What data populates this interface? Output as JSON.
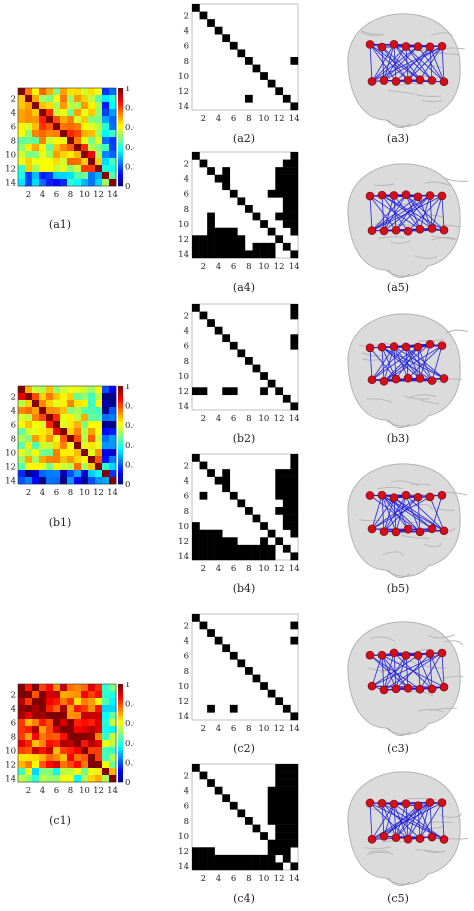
{
  "captions": {
    "a1": "(a1)",
    "a2": "(a2)",
    "a3": "(a3)",
    "a4": "(a4)",
    "a5": "(a5)",
    "b1": "(b1)",
    "b2": "(b2)",
    "b3": "(b3)",
    "b4": "(b4)",
    "b5": "(b5)",
    "c1": "(c1)",
    "c2": "(c2)",
    "c3": "(c3)",
    "c4": "(c4)",
    "c5": "(c5)"
  },
  "axis_ticks": [
    "2",
    "4",
    "6",
    "8",
    "10",
    "12",
    "14"
  ],
  "colorbar_ticks": [
    "1",
    "0.8",
    "0.6",
    "0.4",
    "0.2",
    "0"
  ],
  "colors": {
    "node": "#d0101a",
    "edge": "#1a1ad8",
    "brain": "#d8d8d8",
    "binary_on": "#000000",
    "binary_off": "#ffffff"
  },
  "chart_data": [
    {
      "id": "a1",
      "type": "heatmap",
      "xlabel": "",
      "ylabel": "",
      "ticks": [
        2,
        4,
        6,
        8,
        10,
        12,
        14
      ],
      "colorbar": [
        0,
        1
      ],
      "colormap": "jet",
      "size": 14
    },
    {
      "id": "b1",
      "type": "heatmap",
      "xlabel": "",
      "ylabel": "",
      "ticks": [
        2,
        4,
        6,
        8,
        10,
        12,
        14
      ],
      "colorbar": [
        0,
        1
      ],
      "colormap": "jet",
      "size": 14
    },
    {
      "id": "c1",
      "type": "heatmap",
      "xlabel": "",
      "ylabel": "",
      "ticks": [
        2,
        4,
        6,
        8,
        10,
        12,
        14
      ],
      "colorbar": [
        0,
        1
      ],
      "colormap": "jet",
      "size": 14
    },
    {
      "id": "a2",
      "type": "heatmap",
      "size": 14,
      "binary": true,
      "ones": [
        [
          1,
          1
        ],
        [
          2,
          2
        ],
        [
          3,
          3
        ],
        [
          4,
          4
        ],
        [
          5,
          5
        ],
        [
          6,
          6
        ],
        [
          7,
          7
        ],
        [
          8,
          8
        ],
        [
          9,
          9
        ],
        [
          10,
          10
        ],
        [
          11,
          11
        ],
        [
          12,
          12
        ],
        [
          13,
          13
        ],
        [
          14,
          14
        ],
        [
          8,
          14
        ],
        [
          13,
          8
        ]
      ]
    },
    {
      "id": "a4",
      "type": "heatmap",
      "size": 14,
      "binary": true,
      "ones": [
        [
          1,
          1
        ],
        [
          2,
          2
        ],
        [
          3,
          3
        ],
        [
          4,
          4
        ],
        [
          5,
          5
        ],
        [
          6,
          6
        ],
        [
          7,
          7
        ],
        [
          8,
          8
        ],
        [
          9,
          9
        ],
        [
          10,
          10
        ],
        [
          11,
          11
        ],
        [
          12,
          12
        ],
        [
          13,
          13
        ],
        [
          14,
          14
        ],
        [
          1,
          14
        ],
        [
          2,
          14
        ],
        [
          3,
          14
        ],
        [
          4,
          14
        ],
        [
          5,
          14
        ],
        [
          6,
          14
        ],
        [
          7,
          14
        ],
        [
          8,
          14
        ],
        [
          9,
          14
        ],
        [
          10,
          14
        ],
        [
          11,
          14
        ],
        [
          2,
          13
        ],
        [
          3,
          13
        ],
        [
          4,
          13
        ],
        [
          5,
          13
        ],
        [
          6,
          13
        ],
        [
          7,
          13
        ],
        [
          8,
          13
        ],
        [
          9,
          13
        ],
        [
          10,
          13
        ],
        [
          3,
          12
        ],
        [
          4,
          12
        ],
        [
          5,
          12
        ],
        [
          6,
          12
        ],
        [
          9,
          12
        ],
        [
          3,
          5
        ],
        [
          4,
          5
        ],
        [
          5,
          5
        ],
        [
          6,
          11
        ],
        [
          9,
          3
        ],
        [
          10,
          3
        ],
        [
          11,
          3
        ],
        [
          12,
          3
        ],
        [
          13,
          3
        ],
        [
          14,
          3
        ],
        [
          12,
          1
        ],
        [
          13,
          1
        ],
        [
          14,
          1
        ],
        [
          12,
          2
        ],
        [
          13,
          2
        ],
        [
          14,
          2
        ],
        [
          11,
          4
        ],
        [
          12,
          4
        ],
        [
          13,
          4
        ],
        [
          14,
          4
        ],
        [
          11,
          5
        ],
        [
          12,
          5
        ],
        [
          13,
          5
        ],
        [
          14,
          5
        ],
        [
          11,
          6
        ],
        [
          12,
          6
        ],
        [
          13,
          6
        ],
        [
          14,
          6
        ],
        [
          12,
          7
        ],
        [
          13,
          7
        ],
        [
          14,
          7
        ],
        [
          14,
          8
        ],
        [
          13,
          9
        ],
        [
          14,
          9
        ],
        [
          13,
          10
        ],
        [
          14,
          10
        ],
        [
          13,
          11
        ],
        [
          14,
          11
        ]
      ]
    },
    {
      "id": "b2",
      "type": "heatmap",
      "size": 14,
      "binary": true,
      "ones": [
        [
          1,
          1
        ],
        [
          2,
          2
        ],
        [
          3,
          3
        ],
        [
          4,
          4
        ],
        [
          5,
          5
        ],
        [
          6,
          6
        ],
        [
          7,
          7
        ],
        [
          8,
          8
        ],
        [
          9,
          9
        ],
        [
          10,
          10
        ],
        [
          11,
          11
        ],
        [
          12,
          12
        ],
        [
          13,
          13
        ],
        [
          14,
          14
        ],
        [
          1,
          14
        ],
        [
          2,
          14
        ],
        [
          5,
          14
        ],
        [
          6,
          14
        ],
        [
          12,
          1
        ],
        [
          12,
          2
        ],
        [
          12,
          5
        ],
        [
          12,
          6
        ],
        [
          12,
          10
        ]
      ]
    },
    {
      "id": "b4",
      "type": "heatmap",
      "size": 14,
      "binary": true,
      "ones": [
        [
          1,
          1
        ],
        [
          2,
          2
        ],
        [
          3,
          3
        ],
        [
          4,
          4
        ],
        [
          5,
          5
        ],
        [
          6,
          6
        ],
        [
          7,
          7
        ],
        [
          8,
          8
        ],
        [
          9,
          9
        ],
        [
          10,
          10
        ],
        [
          11,
          11
        ],
        [
          12,
          12
        ],
        [
          13,
          13
        ],
        [
          14,
          14
        ],
        [
          1,
          14
        ],
        [
          2,
          14
        ],
        [
          3,
          14
        ],
        [
          4,
          14
        ],
        [
          5,
          14
        ],
        [
          6,
          14
        ],
        [
          7,
          14
        ],
        [
          8,
          14
        ],
        [
          9,
          14
        ],
        [
          10,
          14
        ],
        [
          11,
          14
        ],
        [
          3,
          13
        ],
        [
          4,
          13
        ],
        [
          5,
          13
        ],
        [
          6,
          13
        ],
        [
          7,
          13
        ],
        [
          8,
          13
        ],
        [
          9,
          13
        ],
        [
          10,
          13
        ],
        [
          3,
          12
        ],
        [
          4,
          12
        ],
        [
          5,
          12
        ],
        [
          6,
          12
        ],
        [
          8,
          12
        ],
        [
          3,
          5
        ],
        [
          4,
          5
        ],
        [
          5,
          5
        ],
        [
          6,
          2
        ],
        [
          10,
          1
        ],
        [
          11,
          1
        ],
        [
          12,
          1
        ],
        [
          13,
          1
        ],
        [
          14,
          1
        ],
        [
          11,
          2
        ],
        [
          12,
          2
        ],
        [
          13,
          2
        ],
        [
          14,
          2
        ],
        [
          11,
          3
        ],
        [
          12,
          3
        ],
        [
          13,
          3
        ],
        [
          14,
          3
        ],
        [
          11,
          4
        ],
        [
          12,
          4
        ],
        [
          13,
          4
        ],
        [
          14,
          4
        ],
        [
          12,
          5
        ],
        [
          13,
          5
        ],
        [
          14,
          5
        ],
        [
          12,
          6
        ],
        [
          13,
          6
        ],
        [
          14,
          6
        ],
        [
          13,
          7
        ],
        [
          14,
          7
        ],
        [
          13,
          8
        ],
        [
          14,
          8
        ],
        [
          13,
          9
        ],
        [
          14,
          9
        ],
        [
          12,
          10
        ],
        [
          13,
          10
        ],
        [
          14,
          10
        ],
        [
          13,
          11
        ],
        [
          14,
          11
        ]
      ]
    },
    {
      "id": "c2",
      "type": "heatmap",
      "size": 14,
      "binary": true,
      "ones": [
        [
          1,
          1
        ],
        [
          2,
          2
        ],
        [
          3,
          3
        ],
        [
          4,
          4
        ],
        [
          5,
          5
        ],
        [
          6,
          6
        ],
        [
          7,
          7
        ],
        [
          8,
          8
        ],
        [
          9,
          9
        ],
        [
          10,
          10
        ],
        [
          11,
          11
        ],
        [
          12,
          12
        ],
        [
          13,
          13
        ],
        [
          14,
          14
        ],
        [
          2,
          14
        ],
        [
          4,
          14
        ],
        [
          13,
          3
        ],
        [
          13,
          6
        ]
      ]
    },
    {
      "id": "c4",
      "type": "heatmap",
      "size": 14,
      "binary": true,
      "ones": [
        [
          1,
          1
        ],
        [
          2,
          2
        ],
        [
          3,
          3
        ],
        [
          4,
          4
        ],
        [
          5,
          5
        ],
        [
          6,
          6
        ],
        [
          7,
          7
        ],
        [
          8,
          8
        ],
        [
          9,
          9
        ],
        [
          10,
          10
        ],
        [
          11,
          11
        ],
        [
          12,
          12
        ],
        [
          13,
          13
        ],
        [
          14,
          14
        ],
        [
          1,
          14
        ],
        [
          2,
          14
        ],
        [
          3,
          14
        ],
        [
          4,
          14
        ],
        [
          5,
          14
        ],
        [
          6,
          14
        ],
        [
          7,
          14
        ],
        [
          8,
          14
        ],
        [
          9,
          14
        ],
        [
          10,
          14
        ],
        [
          11,
          14
        ],
        [
          1,
          13
        ],
        [
          2,
          13
        ],
        [
          3,
          13
        ],
        [
          4,
          13
        ],
        [
          5,
          13
        ],
        [
          6,
          13
        ],
        [
          7,
          13
        ],
        [
          8,
          13
        ],
        [
          9,
          13
        ],
        [
          10,
          13
        ],
        [
          11,
          13
        ],
        [
          12,
          13
        ],
        [
          1,
          12
        ],
        [
          2,
          12
        ],
        [
          3,
          12
        ],
        [
          4,
          12
        ],
        [
          5,
          12
        ],
        [
          6,
          12
        ],
        [
          7,
          12
        ],
        [
          8,
          12
        ],
        [
          9,
          12
        ],
        [
          10,
          12
        ],
        [
          4,
          11
        ],
        [
          5,
          11
        ],
        [
          6,
          11
        ],
        [
          7,
          11
        ],
        [
          8,
          11
        ],
        [
          12,
          1
        ],
        [
          12,
          2
        ],
        [
          12,
          3
        ],
        [
          13,
          1
        ],
        [
          13,
          2
        ],
        [
          13,
          3
        ],
        [
          14,
          1
        ],
        [
          14,
          2
        ],
        [
          14,
          3
        ],
        [
          14,
          4
        ],
        [
          14,
          5
        ],
        [
          14,
          6
        ],
        [
          14,
          7
        ],
        [
          14,
          8
        ],
        [
          14,
          9
        ],
        [
          14,
          10
        ],
        [
          14,
          11
        ],
        [
          14,
          12
        ],
        [
          13,
          4
        ],
        [
          13,
          5
        ],
        [
          13,
          6
        ],
        [
          13,
          7
        ],
        [
          13,
          8
        ],
        [
          13,
          9
        ],
        [
          13,
          10
        ],
        [
          13,
          11
        ],
        [
          11,
          12
        ],
        [
          12,
          11
        ]
      ]
    }
  ]
}
